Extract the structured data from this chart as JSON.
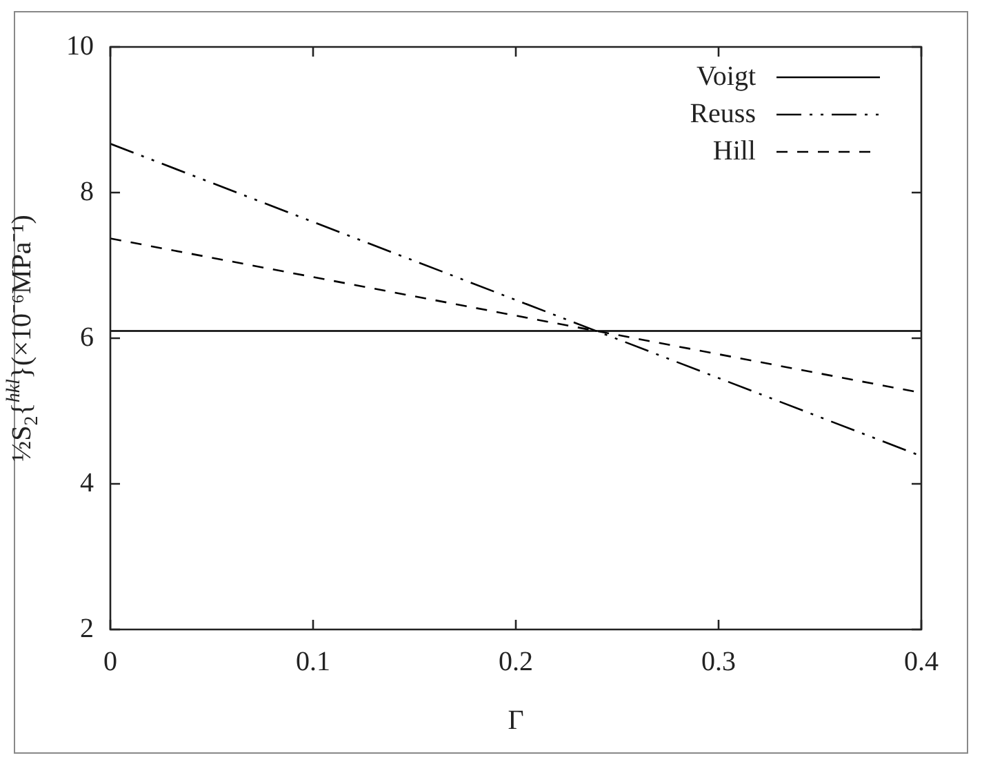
{
  "chart_data": {
    "type": "line",
    "xlabel": "Γ",
    "ylabel": "½S$_{2}${$^{hkl}$}(×10⁻⁶MPa⁻¹)",
    "x": [
      0,
      0.4
    ],
    "xlim": [
      0,
      0.4
    ],
    "xticks": [
      0,
      0.1,
      0.2,
      0.3,
      0.4
    ],
    "ylim": [
      2,
      10
    ],
    "yticks": [
      2,
      4,
      6,
      8,
      10
    ],
    "grid": false,
    "legend": "top right",
    "marker": "none",
    "series": [
      {
        "name": "Voigt",
        "color": "#000000",
        "line_style": "solid",
        "values": [
          6.1,
          6.1
        ]
      },
      {
        "name": "Reuss",
        "color": "#000000",
        "line_style": "dashdotdot",
        "values": [
          8.67,
          4.38
        ]
      },
      {
        "name": "Hill",
        "color": "#000000",
        "line_style": "dashed",
        "values": [
          7.37,
          5.25
        ]
      }
    ]
  }
}
